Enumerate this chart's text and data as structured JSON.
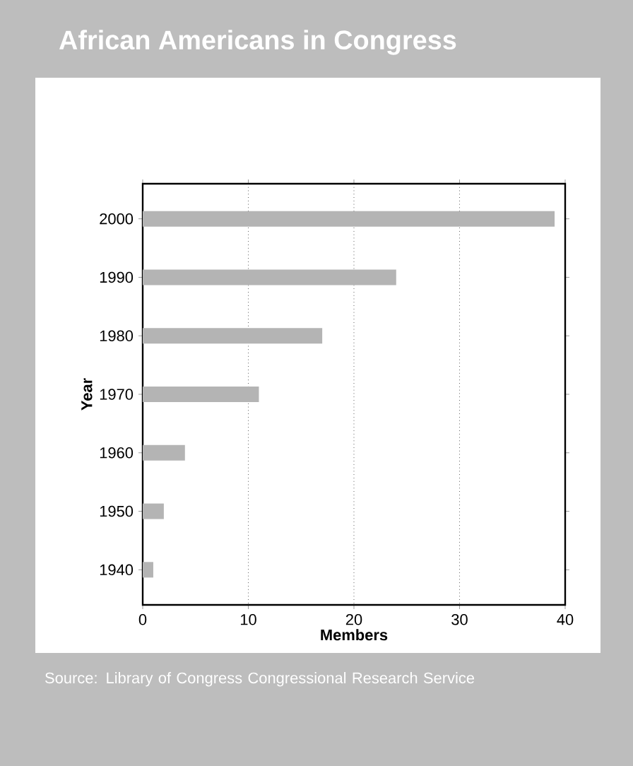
{
  "chart_data": {
    "type": "bar",
    "orientation": "horizontal",
    "title": "African Americans in Congress",
    "xlabel": "Members",
    "ylabel": "Year",
    "categories": [
      "2000",
      "1990",
      "1980",
      "1970",
      "1960",
      "1950",
      "1940"
    ],
    "values": [
      39,
      24,
      17,
      11,
      4,
      2,
      1
    ],
    "color": "#b4b4b4",
    "xlim": [
      0,
      40
    ],
    "xticks": [
      0,
      10,
      20,
      30,
      40
    ],
    "grid": "x",
    "annotations": [
      "Source: Library of Congress Congressional Research Service"
    ]
  }
}
